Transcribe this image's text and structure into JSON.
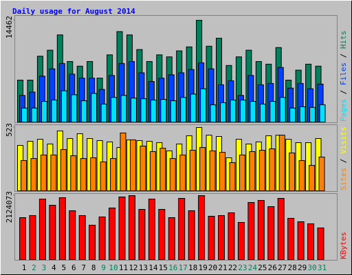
{
  "title": "Daily usage for August 2014",
  "legend_separator": " / ",
  "chart_data": [
    {
      "type": "bar",
      "ylim": [
        0,
        14462
      ],
      "yticks": [
        14462
      ],
      "series": [
        {
          "name": "Hits",
          "color": "#00805c",
          "values": [
            5955,
            5955,
            9358,
            10208,
            12383,
            8602,
            7940,
            8602,
            6239,
            9547,
            12855,
            12383,
            10303,
            8602,
            9547,
            9263,
            10114,
            10681,
            14462,
            10776,
            11910,
            8035,
            9263,
            10208,
            8602,
            8224,
            10587,
            5955,
            7373,
            8224,
            7940
          ]
        },
        {
          "name": "Files",
          "color": "#0040ff",
          "values": [
            3781,
            4254,
            6522,
            7562,
            8318,
            6806,
            6239,
            6239,
            4632,
            6617,
            8318,
            8602,
            6995,
            5766,
            6239,
            6711,
            6995,
            7467,
            8413,
            7562,
            5293,
            5861,
            3781,
            6617,
            5293,
            5483,
            7751,
            4821,
            5483,
            4726,
            5388
          ]
        },
        {
          "name": "Pages",
          "color": "#00e0ff",
          "values": [
            1985,
            1985,
            2930,
            3119,
            4443,
            3875,
            3025,
            4064,
            2552,
            3497,
            3781,
            3403,
            3308,
            3119,
            3214,
            3025,
            3497,
            3970,
            4726,
            2458,
            2741,
            3119,
            3119,
            2930,
            2552,
            2930,
            3497,
            1985,
            2174,
            2080,
            2458
          ]
        }
      ]
    },
    {
      "type": "bar",
      "ylim": [
        0,
        523
      ],
      "yticks": [
        523
      ],
      "series": [
        {
          "name": "Visits",
          "color": "#ffff00",
          "values": [
            375,
            409,
            426,
            387,
            495,
            432,
            472,
            432,
            415,
            404,
            358,
            421,
            415,
            409,
            398,
            330,
            387,
            455,
            523,
            460,
            449,
            273,
            426,
            387,
            404,
            455,
            460,
            426,
            398,
            398,
            432
          ]
        },
        {
          "name": "Sites",
          "color": "#ff8000",
          "values": [
            250,
            267,
            296,
            296,
            341,
            290,
            267,
            273,
            239,
            267,
            478,
            421,
            370,
            324,
            352,
            267,
            296,
            335,
            358,
            330,
            318,
            233,
            296,
            324,
            335,
            347,
            460,
            313,
            250,
            210,
            279
          ]
        }
      ]
    },
    {
      "type": "bar",
      "ylim": [
        0,
        2124073
      ],
      "yticks": [
        2124073
      ],
      "categories": [
        "1",
        "2",
        "3",
        "4",
        "5",
        "6",
        "7",
        "8",
        "9",
        "10",
        "11",
        "12",
        "13",
        "14",
        "15",
        "16",
        "17",
        "18",
        "19",
        "20",
        "21",
        "22",
        "23",
        "24",
        "25",
        "26",
        "27",
        "28",
        "29",
        "30",
        "31"
      ],
      "category_colors": [
        "#000000",
        "#00805c",
        "#00805c",
        "#000000",
        "#000000",
        "#000000",
        "#000000",
        "#000000",
        "#00805c",
        "#00805c",
        "#000000",
        "#000000",
        "#000000",
        "#000000",
        "#000000",
        "#00805c",
        "#00805c",
        "#000000",
        "#000000",
        "#000000",
        "#000000",
        "#000000",
        "#00805c",
        "#00805c",
        "#000000",
        "#000000",
        "#000000",
        "#000000",
        "#000000",
        "#00805c",
        "#00805c"
      ],
      "series": [
        {
          "name": "KBytes",
          "color": "#ff0000",
          "values": [
            1393210,
            1461730,
            2009850,
            1804300,
            2055550,
            1621570,
            1461730,
            1141970,
            1416050,
            1712960,
            2078380,
            2124073,
            1667270,
            2009850,
            1667270,
            1393210,
            2032680,
            1621570,
            2124073,
            1438890,
            1461730,
            1553060,
            1233320,
            1895650,
            1964170,
            1758640,
            2032680,
            1370370,
            1256170,
            1187640,
            1050600
          ]
        }
      ]
    }
  ]
}
